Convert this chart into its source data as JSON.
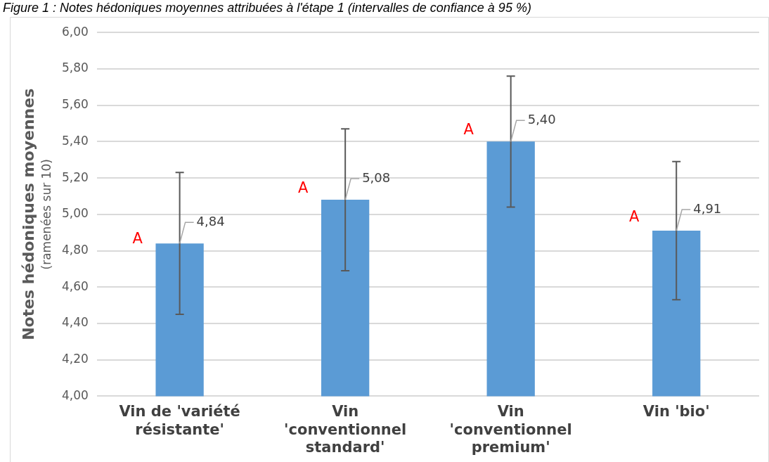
{
  "chart_data": {
    "type": "bar",
    "title": "Figure 1 : Notes hédoniques moyennes attribuées à l'étape 1 (intervalles de confiance à 95 %)",
    "ylabel": "Notes hédoniques moyennes\n(ramenées sur 10)",
    "categories": [
      "Vin de 'variété résistante'",
      "Vin 'conventionnel standard'",
      "Vin 'conventionnel premium'",
      "Vin 'bio'"
    ],
    "values": [
      4.84,
      5.08,
      5.4,
      4.91
    ],
    "errors": [
      0.39,
      0.39,
      0.36,
      0.38
    ],
    "color": "#5b9bd5",
    "value_labels": [
      "4,84",
      "5,08",
      "5,40",
      "4,91"
    ],
    "ylim": [
      4,
      6
    ],
    "yticks": [
      {
        "value": 4,
        "label": "4,00"
      },
      {
        "value": 4.2,
        "label": "4,20"
      },
      {
        "value": 4.4,
        "label": "4,40"
      },
      {
        "value": 4.6,
        "label": "4,60"
      },
      {
        "value": 4.8,
        "label": "4,80"
      },
      {
        "value": 5,
        "label": "5,00"
      },
      {
        "value": 5.2,
        "label": "5,20"
      },
      {
        "value": 5.4,
        "label": "5,40"
      },
      {
        "value": 5.6,
        "label": "5,60"
      },
      {
        "value": 5.8,
        "label": "5,80"
      },
      {
        "value": 6,
        "label": "6,00"
      }
    ],
    "grid": "y",
    "legend": false,
    "annotations": [
      {
        "text": "A",
        "x": "Vin de 'variété résistante'",
        "y": 4.86
      },
      {
        "text": "A",
        "x": "Vin 'conventionnel standard'",
        "y": 5.14
      },
      {
        "text": "A",
        "x": "Vin 'conventionnel premium'",
        "y": 5.46
      },
      {
        "text": "A",
        "x": "Vin 'bio'",
        "y": 4.98
      }
    ]
  }
}
